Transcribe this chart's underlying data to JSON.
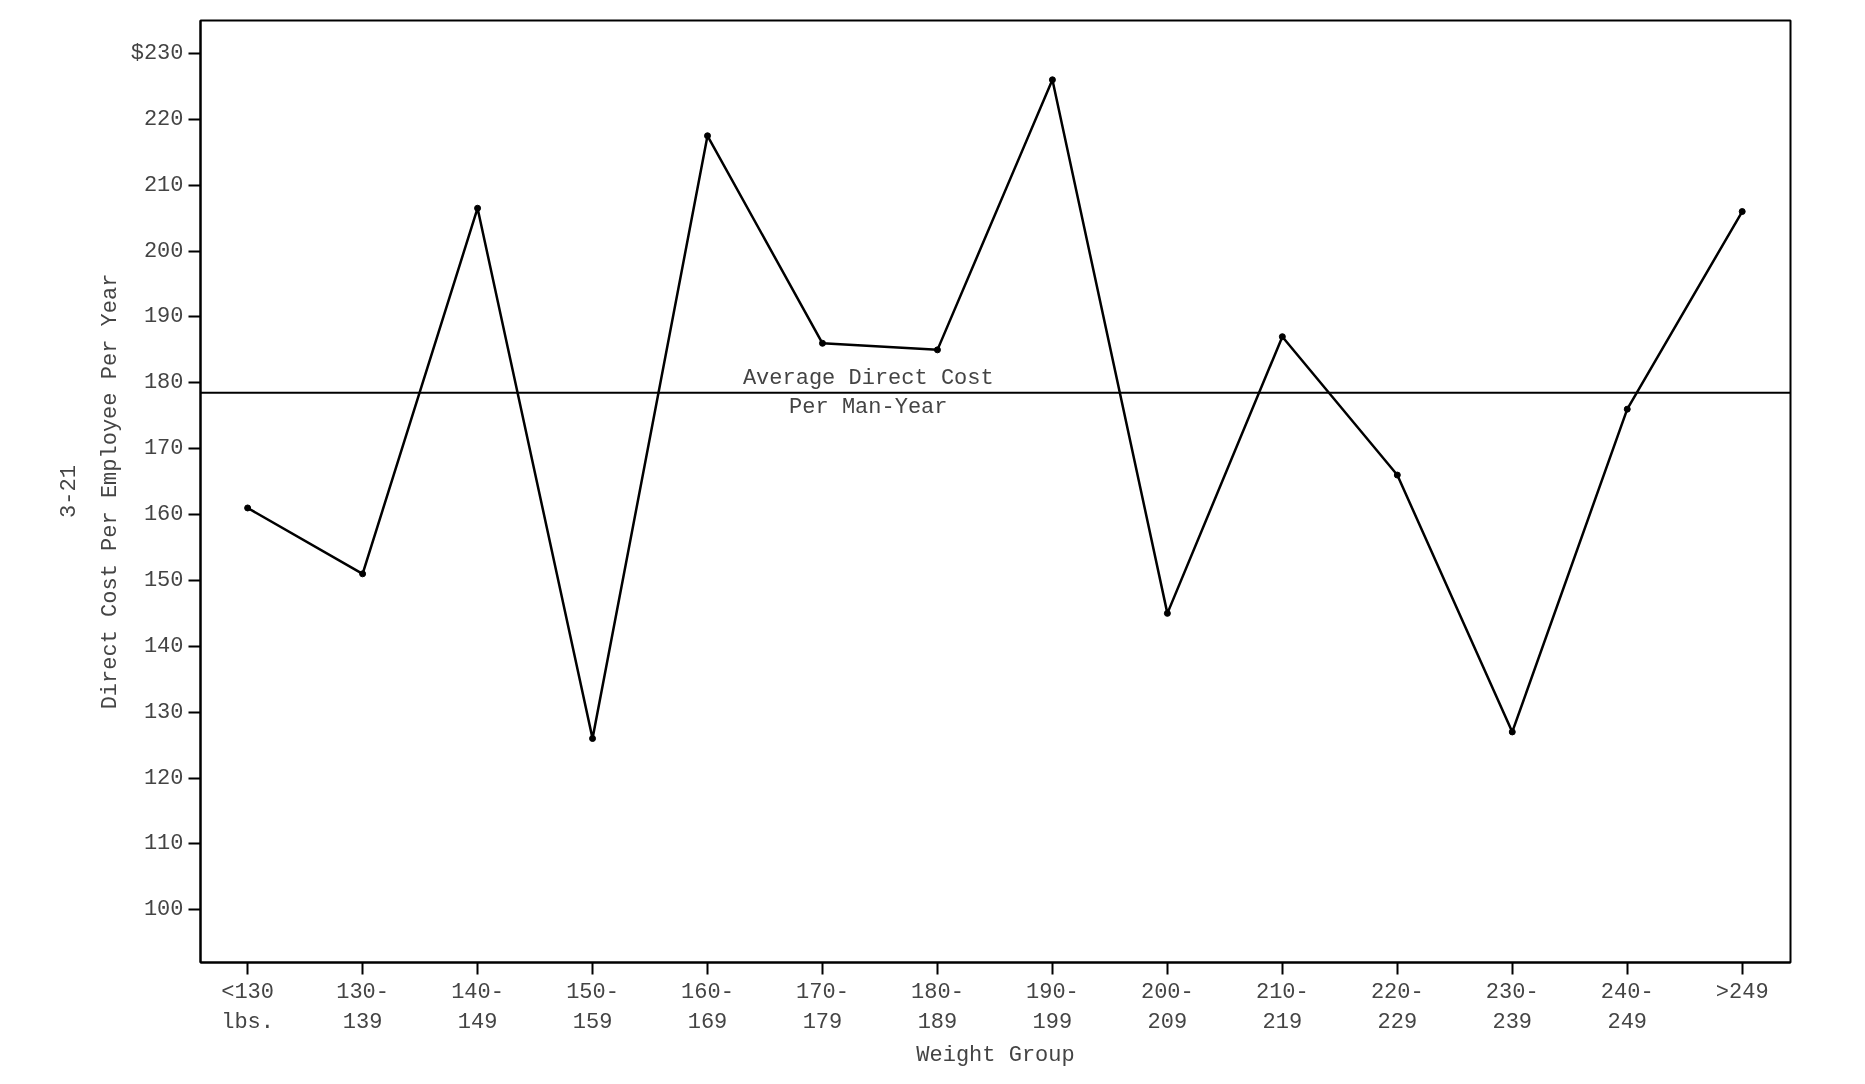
{
  "chart_data": {
    "type": "line",
    "xlabel": "Weight Group",
    "ylabel": "Direct Cost Per Employee Per Year",
    "categories": [
      "<130\nlbs.",
      "130-\n139",
      "140-\n149",
      "150-\n159",
      "160-\n169",
      "170-\n179",
      "180-\n189",
      "190-\n199",
      "200-\n209",
      "210-\n219",
      "220-\n229",
      "230-\n239",
      "240-\n249",
      ">249"
    ],
    "series": [
      {
        "color": "#000000",
        "values": [
          161,
          151,
          206.5,
          126,
          217.5,
          186,
          185,
          226,
          145,
          187,
          166,
          127,
          176,
          206
        ]
      }
    ],
    "ylim": [
      92,
      235
    ],
    "yticks": [
      {
        "value": 100,
        "label": "100"
      },
      {
        "value": 110,
        "label": "110"
      },
      {
        "value": 120,
        "label": "120"
      },
      {
        "value": 130,
        "label": "130"
      },
      {
        "value": 140,
        "label": "140"
      },
      {
        "value": 150,
        "label": "150"
      },
      {
        "value": 160,
        "label": "160"
      },
      {
        "value": 170,
        "label": "170"
      },
      {
        "value": 180,
        "label": "180"
      },
      {
        "value": 190,
        "label": "190"
      },
      {
        "value": 200,
        "label": "200"
      },
      {
        "value": 210,
        "label": "210"
      },
      {
        "value": 220,
        "label": "220"
      },
      {
        "value": 230,
        "label": "$230"
      }
    ],
    "ref_lines": [
      {
        "axis": "y",
        "value": 178.5,
        "label": "Average Direct Cost\nPer Man-Year",
        "color": "#000000"
      }
    ],
    "annotations": [
      "3-21"
    ],
    "marker": "circle",
    "grid": false
  }
}
